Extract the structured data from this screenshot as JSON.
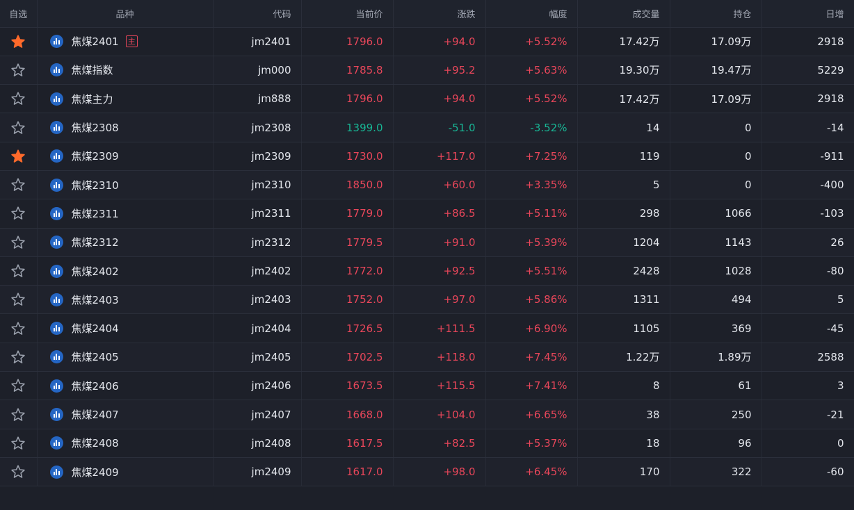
{
  "header": {
    "fav": "自选",
    "name": "品种",
    "code": "代码",
    "price": "当前价",
    "change": "涨跌",
    "pct": "幅度",
    "volume": "成交量",
    "oi": "持仓",
    "daily": "日增"
  },
  "colors": {
    "up": "#e8465a",
    "down": "#18b695",
    "star_active": "#ff6a2b",
    "star_inactive": "#9aa0ac",
    "icon_blue": "#2566c4"
  },
  "rows": [
    {
      "fav": true,
      "name": "焦煤2401",
      "badge": "主",
      "code": "jm2401",
      "price": "1796.0",
      "change": "+94.0",
      "pct": "+5.52%",
      "volume": "17.42万",
      "oi": "17.09万",
      "daily": "2918",
      "dir": "up"
    },
    {
      "fav": false,
      "name": "焦煤指数",
      "badge": "",
      "code": "jm000",
      "price": "1785.8",
      "change": "+95.2",
      "pct": "+5.63%",
      "volume": "19.30万",
      "oi": "19.47万",
      "daily": "5229",
      "dir": "up"
    },
    {
      "fav": false,
      "name": "焦煤主力",
      "badge": "",
      "code": "jm888",
      "price": "1796.0",
      "change": "+94.0",
      "pct": "+5.52%",
      "volume": "17.42万",
      "oi": "17.09万",
      "daily": "2918",
      "dir": "up"
    },
    {
      "fav": false,
      "name": "焦煤2308",
      "badge": "",
      "code": "jm2308",
      "price": "1399.0",
      "change": "-51.0",
      "pct": "-3.52%",
      "volume": "14",
      "oi": "0",
      "daily": "-14",
      "dir": "down"
    },
    {
      "fav": true,
      "name": "焦煤2309",
      "badge": "",
      "code": "jm2309",
      "price": "1730.0",
      "change": "+117.0",
      "pct": "+7.25%",
      "volume": "119",
      "oi": "0",
      "daily": "-911",
      "dir": "up"
    },
    {
      "fav": false,
      "name": "焦煤2310",
      "badge": "",
      "code": "jm2310",
      "price": "1850.0",
      "change": "+60.0",
      "pct": "+3.35%",
      "volume": "5",
      "oi": "0",
      "daily": "-400",
      "dir": "up"
    },
    {
      "fav": false,
      "name": "焦煤2311",
      "badge": "",
      "code": "jm2311",
      "price": "1779.0",
      "change": "+86.5",
      "pct": "+5.11%",
      "volume": "298",
      "oi": "1066",
      "daily": "-103",
      "dir": "up"
    },
    {
      "fav": false,
      "name": "焦煤2312",
      "badge": "",
      "code": "jm2312",
      "price": "1779.5",
      "change": "+91.0",
      "pct": "+5.39%",
      "volume": "1204",
      "oi": "1143",
      "daily": "26",
      "dir": "up"
    },
    {
      "fav": false,
      "name": "焦煤2402",
      "badge": "",
      "code": "jm2402",
      "price": "1772.0",
      "change": "+92.5",
      "pct": "+5.51%",
      "volume": "2428",
      "oi": "1028",
      "daily": "-80",
      "dir": "up"
    },
    {
      "fav": false,
      "name": "焦煤2403",
      "badge": "",
      "code": "jm2403",
      "price": "1752.0",
      "change": "+97.0",
      "pct": "+5.86%",
      "volume": "1311",
      "oi": "494",
      "daily": "5",
      "dir": "up"
    },
    {
      "fav": false,
      "name": "焦煤2404",
      "badge": "",
      "code": "jm2404",
      "price": "1726.5",
      "change": "+111.5",
      "pct": "+6.90%",
      "volume": "1105",
      "oi": "369",
      "daily": "-45",
      "dir": "up"
    },
    {
      "fav": false,
      "name": "焦煤2405",
      "badge": "",
      "code": "jm2405",
      "price": "1702.5",
      "change": "+118.0",
      "pct": "+7.45%",
      "volume": "1.22万",
      "oi": "1.89万",
      "daily": "2588",
      "dir": "up"
    },
    {
      "fav": false,
      "name": "焦煤2406",
      "badge": "",
      "code": "jm2406",
      "price": "1673.5",
      "change": "+115.5",
      "pct": "+7.41%",
      "volume": "8",
      "oi": "61",
      "daily": "3",
      "dir": "up"
    },
    {
      "fav": false,
      "name": "焦煤2407",
      "badge": "",
      "code": "jm2407",
      "price": "1668.0",
      "change": "+104.0",
      "pct": "+6.65%",
      "volume": "38",
      "oi": "250",
      "daily": "-21",
      "dir": "up"
    },
    {
      "fav": false,
      "name": "焦煤2408",
      "badge": "",
      "code": "jm2408",
      "price": "1617.5",
      "change": "+82.5",
      "pct": "+5.37%",
      "volume": "18",
      "oi": "96",
      "daily": "0",
      "dir": "up"
    },
    {
      "fav": false,
      "name": "焦煤2409",
      "badge": "",
      "code": "jm2409",
      "price": "1617.0",
      "change": "+98.0",
      "pct": "+6.45%",
      "volume": "170",
      "oi": "322",
      "daily": "-60",
      "dir": "up"
    }
  ]
}
